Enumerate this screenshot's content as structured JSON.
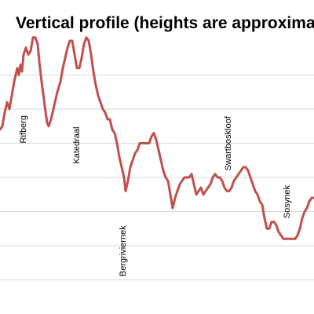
{
  "title": "Vertical profile (heights are approximat",
  "chart_data": {
    "type": "line",
    "title": "Vertical profile (heights are approximat",
    "xlabel": "",
    "ylabel": "",
    "grid": true,
    "legend": "none",
    "line_color": "#c0504d",
    "grid_color": "#d9d9d9",
    "xlim": [
      0,
      400
    ],
    "ylim": [
      0,
      8
    ],
    "gridlines_y": [
      1,
      2,
      3,
      4,
      5,
      6,
      7
    ],
    "points": [
      [
        0,
        5.4
      ],
      [
        3,
        5.5
      ],
      [
        6,
        5.9
      ],
      [
        9,
        6.2
      ],
      [
        12,
        6.0
      ],
      [
        15,
        6.4
      ],
      [
        18,
        6.8
      ],
      [
        20,
        7.0
      ],
      [
        22,
        7.2
      ],
      [
        24,
        7.0
      ],
      [
        26,
        7.3
      ],
      [
        28,
        7.1
      ],
      [
        30,
        7.6
      ],
      [
        33,
        7.8
      ],
      [
        36,
        7.6
      ],
      [
        39,
        7.7
      ],
      [
        42,
        8.1
      ],
      [
        45,
        8.1
      ],
      [
        48,
        7.9
      ],
      [
        50,
        7.4
      ],
      [
        53,
        6.8
      ],
      [
        57,
        6.1
      ],
      [
        60,
        5.6
      ],
      [
        62,
        5.5
      ],
      [
        65,
        5.7
      ],
      [
        69,
        6.1
      ],
      [
        73,
        6.5
      ],
      [
        77,
        6.8
      ],
      [
        80,
        7.2
      ],
      [
        83,
        7.5
      ],
      [
        86,
        7.8
      ],
      [
        89,
        8.0
      ],
      [
        92,
        8.0
      ],
      [
        95,
        7.6
      ],
      [
        98,
        7.2
      ],
      [
        101,
        7.2
      ],
      [
        104,
        7.5
      ],
      [
        107,
        7.9
      ],
      [
        110,
        8.1
      ],
      [
        113,
        8.0
      ],
      [
        116,
        7.6
      ],
      [
        119,
        7.1
      ],
      [
        122,
        6.7
      ],
      [
        125,
        6.4
      ],
      [
        128,
        6.2
      ],
      [
        131,
        6.0
      ],
      [
        134,
        5.9
      ],
      [
        137,
        5.7
      ],
      [
        140,
        5.7
      ],
      [
        143,
        5.4
      ],
      [
        146,
        5.3
      ],
      [
        149,
        5.0
      ],
      [
        152,
        4.6
      ],
      [
        155,
        4.3
      ],
      [
        158,
        4.0
      ],
      [
        160,
        3.6
      ],
      [
        163,
        3.9
      ],
      [
        166,
        4.3
      ],
      [
        169,
        4.5
      ],
      [
        172,
        4.7
      ],
      [
        175,
        4.8
      ],
      [
        178,
        5.0
      ],
      [
        181,
        5.0
      ],
      [
        184,
        5.0
      ],
      [
        187,
        5.0
      ],
      [
        190,
        5.0
      ],
      [
        193,
        5.2
      ],
      [
        196,
        5.3
      ],
      [
        199,
        5.1
      ],
      [
        202,
        4.8
      ],
      [
        205,
        4.5
      ],
      [
        208,
        4.2
      ],
      [
        211,
        4.0
      ],
      [
        214,
        3.9
      ],
      [
        217,
        3.5
      ],
      [
        220,
        3.1
      ],
      [
        223,
        3.4
      ],
      [
        226,
        3.6
      ],
      [
        229,
        3.8
      ],
      [
        232,
        3.9
      ],
      [
        235,
        4.0
      ],
      [
        238,
        4.0
      ],
      [
        241,
        4.0
      ],
      [
        244,
        4.1
      ],
      [
        247,
        3.8
      ],
      [
        250,
        3.5
      ],
      [
        253,
        3.6
      ],
      [
        256,
        3.7
      ],
      [
        259,
        3.5
      ],
      [
        262,
        3.6
      ],
      [
        265,
        3.7
      ],
      [
        268,
        3.8
      ],
      [
        271,
        4.0
      ],
      [
        274,
        4.1
      ],
      [
        277,
        4.0
      ],
      [
        280,
        4.0
      ],
      [
        283,
        3.9
      ],
      [
        286,
        3.7
      ],
      [
        289,
        3.6
      ],
      [
        292,
        3.6
      ],
      [
        295,
        3.7
      ],
      [
        298,
        3.9
      ],
      [
        301,
        4.0
      ],
      [
        304,
        4.1
      ],
      [
        307,
        4.2
      ],
      [
        310,
        4.3
      ],
      [
        313,
        4.3
      ],
      [
        316,
        4.2
      ],
      [
        319,
        4.0
      ],
      [
        322,
        3.8
      ],
      [
        325,
        3.6
      ],
      [
        328,
        3.5
      ],
      [
        331,
        3.3
      ],
      [
        334,
        3.2
      ],
      [
        337,
        2.8
      ],
      [
        340,
        2.5
      ],
      [
        343,
        2.5
      ],
      [
        346,
        2.7
      ],
      [
        349,
        2.7
      ],
      [
        352,
        2.6
      ],
      [
        355,
        2.4
      ],
      [
        358,
        2.3
      ],
      [
        361,
        2.2
      ],
      [
        364,
        2.2
      ],
      [
        367,
        2.2
      ],
      [
        370,
        2.2
      ],
      [
        373,
        2.2
      ],
      [
        376,
        2.2
      ],
      [
        379,
        2.3
      ],
      [
        382,
        2.5
      ],
      [
        385,
        2.8
      ],
      [
        388,
        3.0
      ],
      [
        391,
        3.1
      ],
      [
        394,
        3.3
      ],
      [
        397,
        3.4
      ],
      [
        400,
        3.4
      ]
    ],
    "annotations": [
      {
        "text": "Rifberg",
        "x": 33,
        "y": 5.0
      },
      {
        "text": "Katedraal",
        "x": 101,
        "y": 4.4
      },
      {
        "text": "Bergriviernek",
        "x": 160,
        "y": 1.1
      },
      {
        "text": "Swartboskloof",
        "x": 294,
        "y": 4.2
      },
      {
        "text": "Sosynek",
        "x": 369,
        "y": 2.8
      }
    ]
  }
}
